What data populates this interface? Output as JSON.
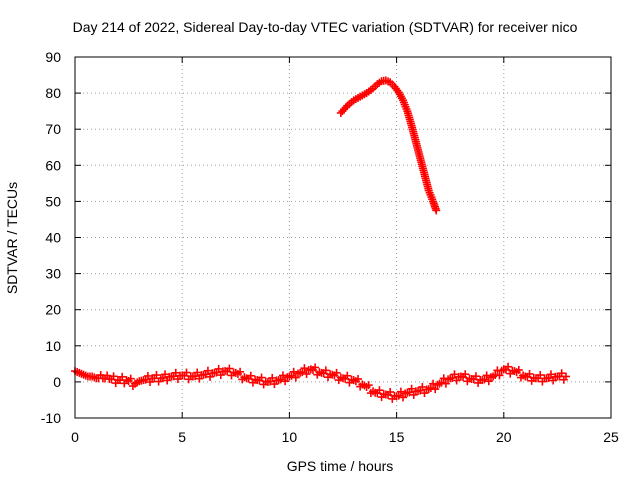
{
  "chart_data": {
    "type": "scatter",
    "title": "Day 214 of 2022, Sidereal Day-to-day VTEC variation (SDTVAR) for receiver nico",
    "xlabel": "GPS time / hours",
    "ylabel": "SDTVAR / TECUs",
    "xlim": [
      0,
      25
    ],
    "ylim": [
      -10,
      90
    ],
    "x_ticks": [
      0,
      5,
      10,
      15,
      20,
      25
    ],
    "y_ticks": [
      -10,
      0,
      10,
      20,
      30,
      40,
      50,
      60,
      70,
      80,
      90
    ],
    "grid": true,
    "marker": "plus",
    "series": [
      {
        "name": "low band",
        "color": "#ff0000",
        "x": [
          0.0,
          0.2,
          0.4,
          0.6,
          0.8,
          1.0,
          1.3,
          1.6,
          2.0,
          2.4,
          2.8,
          3.0,
          3.2,
          3.6,
          4.0,
          4.5,
          5.0,
          5.5,
          6.0,
          6.5,
          7.0,
          7.5,
          8.0,
          8.5,
          9.0,
          9.5,
          10.0,
          10.5,
          11.0,
          11.5,
          12.0,
          12.5,
          13.0,
          13.5,
          14.0,
          14.5,
          15.0,
          15.5,
          16.0,
          16.5,
          17.0,
          17.5,
          18.0,
          18.5,
          19.0,
          19.5,
          20.0,
          20.5,
          21.0,
          21.5,
          22.0,
          22.5,
          22.9
        ],
        "y": [
          3.0,
          2.5,
          2.0,
          1.5,
          1.5,
          1.0,
          1.0,
          0.8,
          0.5,
          0.5,
          -0.5,
          0.2,
          0.5,
          1.0,
          1.0,
          1.5,
          1.8,
          1.5,
          2.0,
          2.5,
          3.0,
          2.5,
          1.0,
          0.5,
          0.0,
          0.5,
          1.5,
          2.5,
          3.5,
          2.5,
          2.0,
          1.0,
          0.5,
          -1.0,
          -3.0,
          -3.5,
          -4.0,
          -3.0,
          -2.5,
          -2.0,
          -0.5,
          1.0,
          1.5,
          0.8,
          0.5,
          1.5,
          3.5,
          3.0,
          1.5,
          1.0,
          1.0,
          1.5,
          1.5
        ]
      },
      {
        "name": "high band",
        "color": "#ff0000",
        "x": [
          12.4,
          12.7,
          13.0,
          13.3,
          13.6,
          13.9,
          14.1,
          14.3,
          14.5,
          14.7,
          14.9,
          15.1,
          15.3,
          15.5,
          15.7,
          15.9,
          16.1,
          16.3,
          16.5,
          16.7,
          16.85
        ],
        "y": [
          74.5,
          76.5,
          78.0,
          79.0,
          80.0,
          81.3,
          82.5,
          83.3,
          83.5,
          83.0,
          81.8,
          80.2,
          78.0,
          75.0,
          71.0,
          66.5,
          62.0,
          57.5,
          53.0,
          50.0,
          47.5
        ]
      }
    ]
  }
}
